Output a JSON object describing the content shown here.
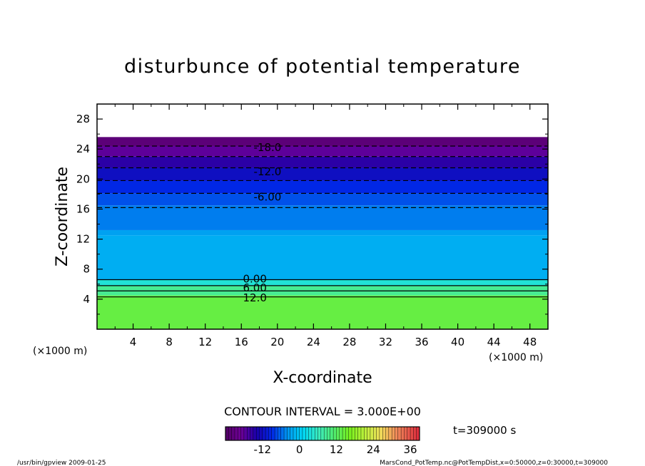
{
  "chart_data": {
    "type": "heatmap",
    "title": "disturbunce of potential temperature",
    "xlabel": "X-coordinate",
    "ylabel": "Z-coordinate",
    "x_unit": "(×1000 m)",
    "y_unit": "(×1000 m)",
    "xlim": [
      0,
      50
    ],
    "ylim": [
      0,
      30
    ],
    "x_ticks": [
      4,
      8,
      12,
      16,
      20,
      24,
      28,
      32,
      36,
      40,
      44,
      48
    ],
    "y_ticks": [
      4,
      8,
      12,
      16,
      20,
      24,
      28
    ],
    "contour_interval": "CONTOUR INTERVAL = 3.000E+00",
    "time_label": "t=309000 s",
    "colorbar": {
      "range": [
        -24,
        39
      ],
      "ticks": [
        -12,
        0,
        12,
        24,
        36
      ]
    },
    "contour_labels": [
      {
        "text": "-18.0",
        "x": 18.9,
        "y": 24.2
      },
      {
        "text": "-12.0",
        "x": 18.9,
        "y": 21.0
      },
      {
        "text": "-6.00",
        "x": 18.9,
        "y": 17.6
      },
      {
        "text": "0.00",
        "x": 17.5,
        "y": 6.7
      },
      {
        "text": "6.00",
        "x": 17.5,
        "y": 5.5
      },
      {
        "text": "12.0",
        "x": 17.5,
        "y": 4.2
      }
    ],
    "bands": [
      {
        "z0": 0,
        "z1": 4.5,
        "value": 14
      },
      {
        "z0": 4.5,
        "z1": 5.8,
        "value": 9
      },
      {
        "z0": 5.8,
        "z1": 6.6,
        "value": 4
      },
      {
        "z0": 6.6,
        "z1": 12.5,
        "value": -2
      },
      {
        "z0": 12.5,
        "z1": 13.2,
        "value": -3
      },
      {
        "z0": 13.2,
        "z1": 16.5,
        "value": -5
      },
      {
        "z0": 16.5,
        "z1": 18.1,
        "value": -7
      },
      {
        "z0": 18.1,
        "z1": 19.8,
        "value": -9
      },
      {
        "z0": 19.8,
        "z1": 21.5,
        "value": -12
      },
      {
        "z0": 21.5,
        "z1": 23.0,
        "value": -15
      },
      {
        "z0": 23.0,
        "z1": 24.4,
        "value": -18
      },
      {
        "z0": 24.4,
        "z1": 25.6,
        "value": -22
      }
    ],
    "solid_contours_z": [
      4.3,
      5.1,
      5.8,
      6.6
    ],
    "dashed_contours_z": [
      16.2,
      18.1,
      19.8,
      21.5,
      23.0,
      24.4
    ]
  },
  "footer": {
    "left": "/usr/bin/gpview   2009-01-25",
    "right": "MarsCond_PotTemp.nc@PotTempDist,x=0:50000,z=0:30000,t=309000"
  }
}
